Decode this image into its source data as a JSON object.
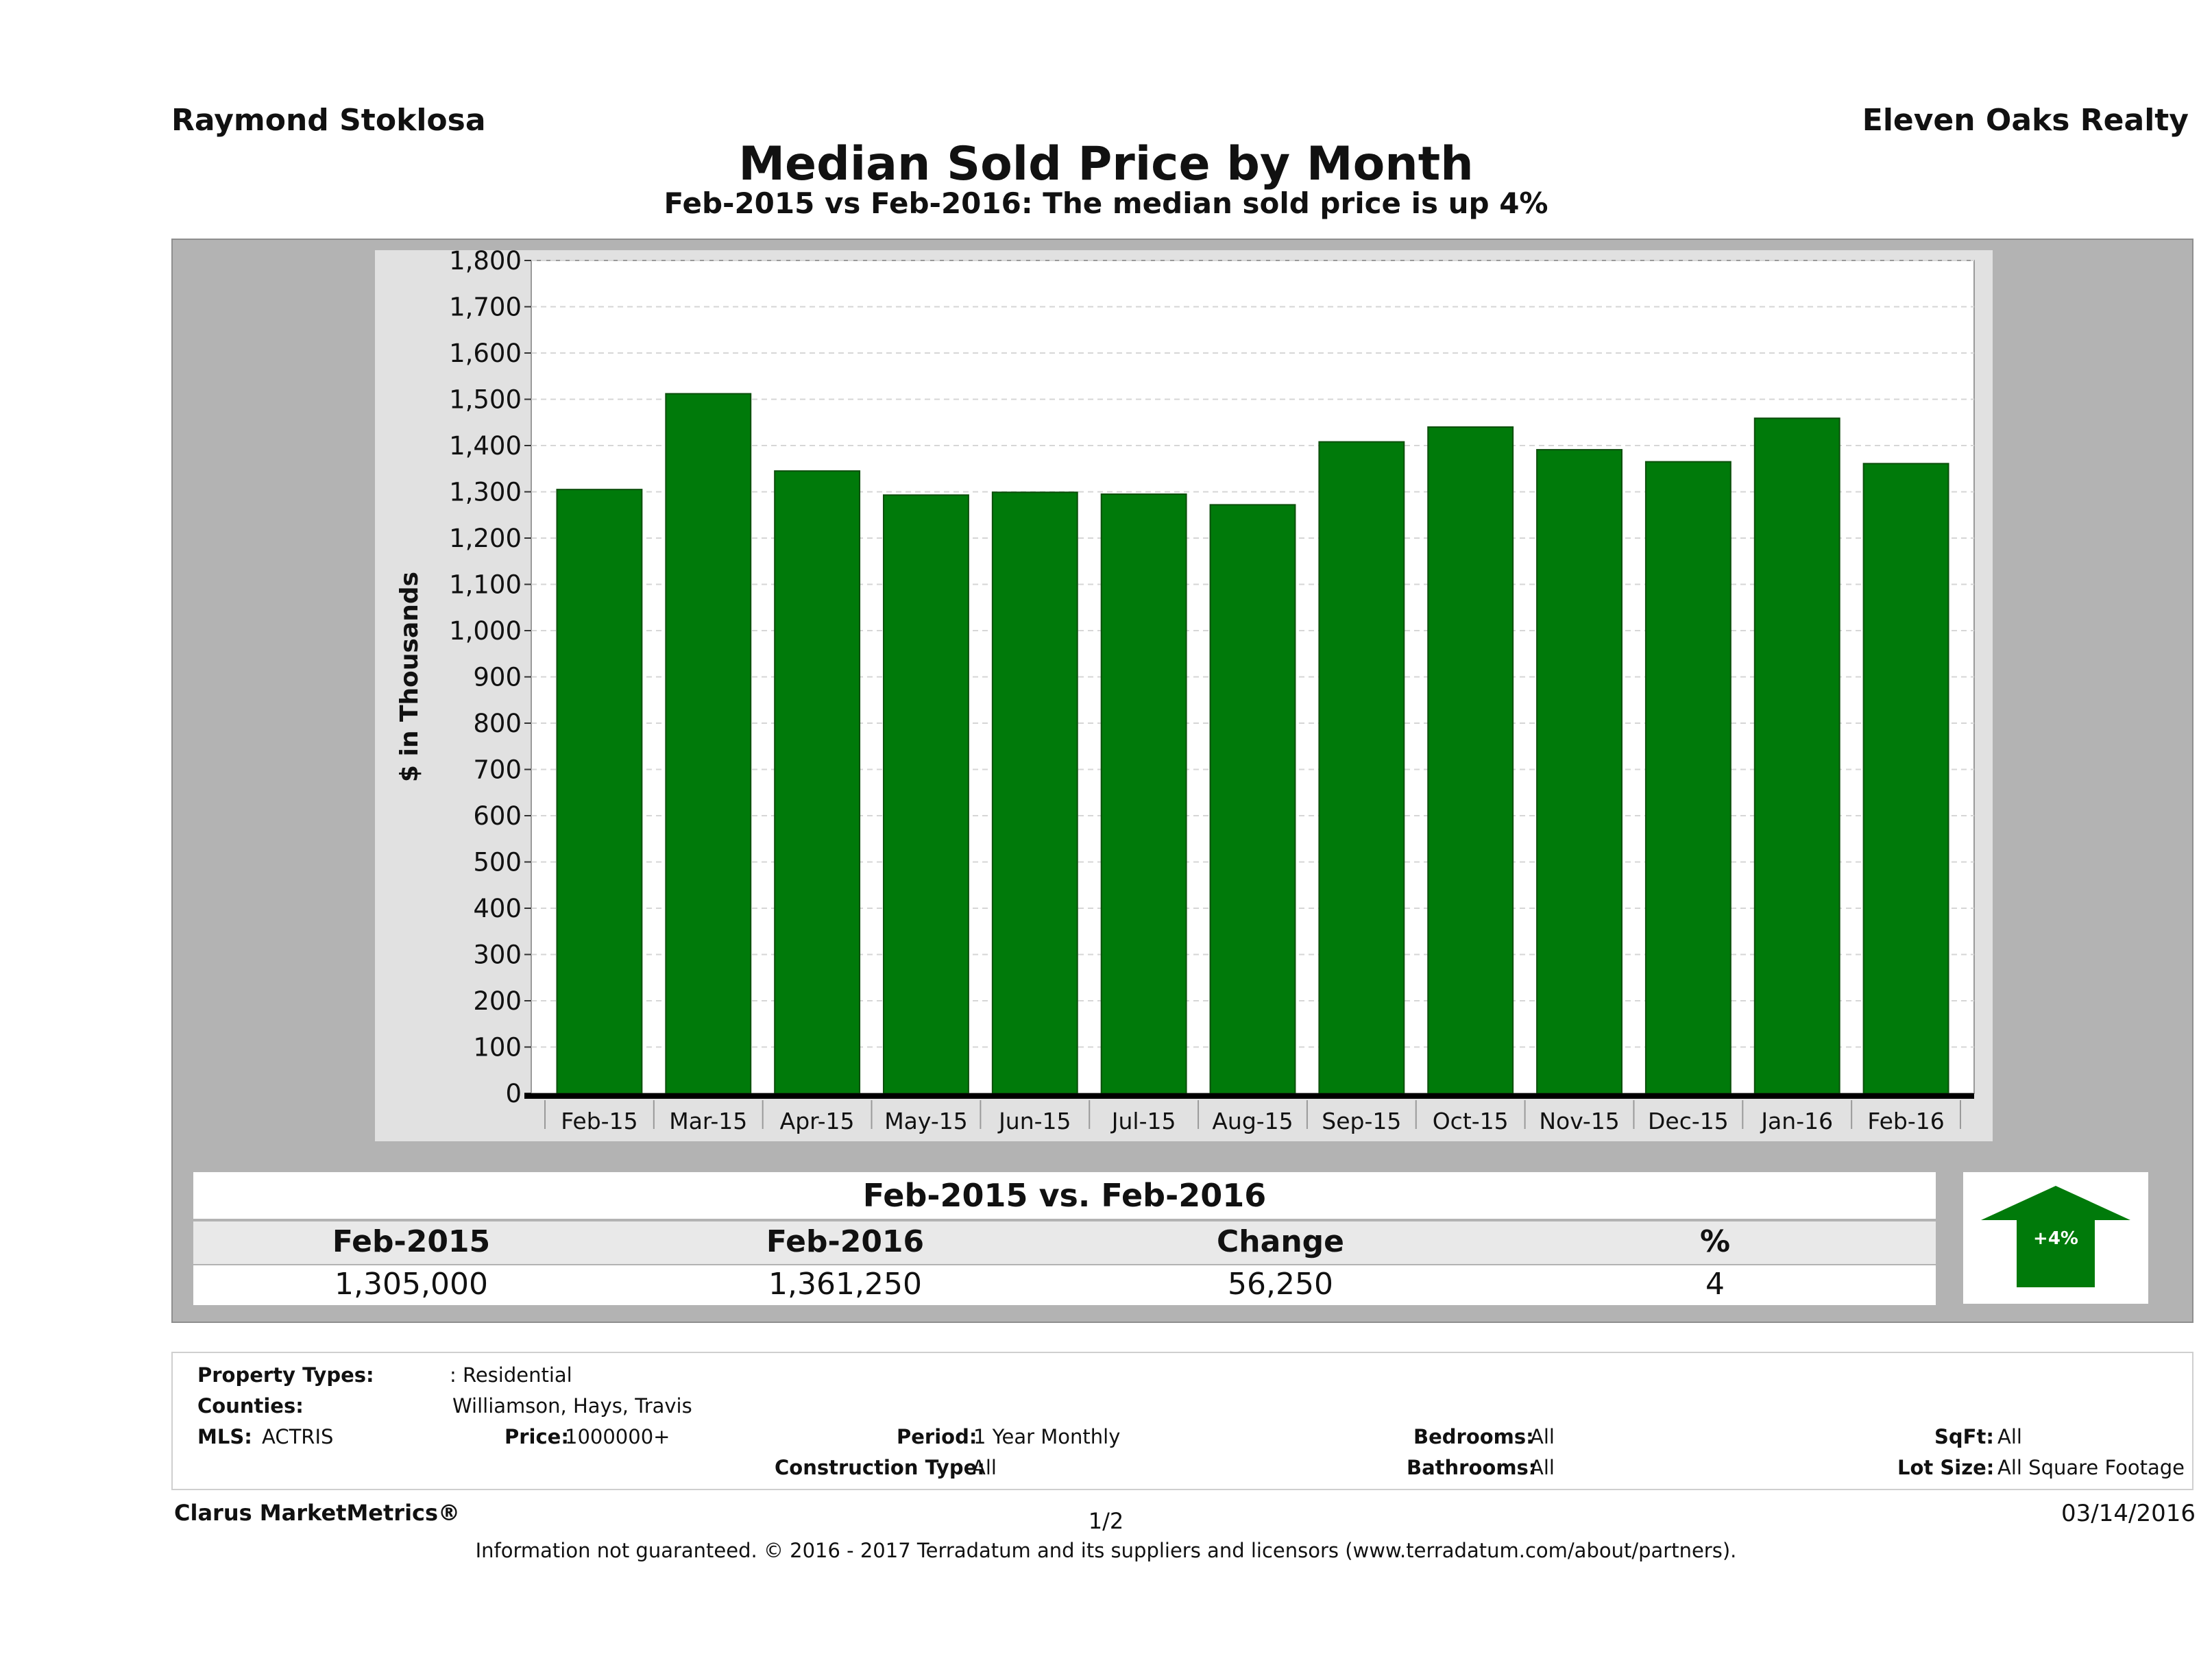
{
  "header": {
    "agent": "Raymond Stoklosa",
    "brokerage": "Eleven Oaks Realty",
    "title": "Median Sold Price by Month",
    "subtitle": "Feb-2015 vs Feb-2016: The median sold price is up 4%"
  },
  "chart_data": {
    "type": "bar",
    "categories": [
      "Feb-15",
      "Mar-15",
      "Apr-15",
      "May-15",
      "Jun-15",
      "Jul-15",
      "Aug-15",
      "Sep-15",
      "Oct-15",
      "Nov-15",
      "Dec-15",
      "Jan-16",
      "Feb-16"
    ],
    "values": [
      1305,
      1512,
      1345,
      1293,
      1299,
      1295,
      1272,
      1408,
      1440,
      1391,
      1365,
      1459,
      1361
    ],
    "title": "Median Sold Price by Month",
    "xlabel": "",
    "ylabel": "$ in Thousands",
    "ylim": [
      0,
      1800
    ],
    "yticks": [
      0,
      100,
      200,
      300,
      400,
      500,
      600,
      700,
      800,
      900,
      1000,
      1100,
      1200,
      1300,
      1400,
      1500,
      1600,
      1700,
      1800
    ],
    "ytick_labels": [
      "0",
      "100",
      "200",
      "300",
      "400",
      "500",
      "600",
      "700",
      "800",
      "900",
      "1,000",
      "1,100",
      "1,200",
      "1,300",
      "1,400",
      "1,500",
      "1,600",
      "1,700",
      "1,800"
    ],
    "grid": true,
    "bar_color": "#007a0a"
  },
  "comparison": {
    "title": "Feb-2015 vs. Feb-2016",
    "headers": [
      "Feb-2015",
      "Feb-2016",
      "Change",
      "%"
    ],
    "values": [
      "1,305,000",
      "1,361,250",
      "56,250",
      "4"
    ],
    "arrow_label": "+4%",
    "arrow_color": "#007a0a"
  },
  "filters": {
    "property_types_label": "Property Types:",
    "property_types_value": ": Residential",
    "counties_label": "Counties:",
    "counties_value": "Williamson, Hays, Travis",
    "mls_label": "MLS:",
    "mls_value": "ACTRIS",
    "price_label": "Price:",
    "price_value": "1000000+",
    "period_label": "Period:",
    "period_value": "1 Year Monthly",
    "construction_label": "Construction Type:",
    "construction_value": "All",
    "bedrooms_label": "Bedrooms:",
    "bedrooms_value": "All",
    "bathrooms_label": "Bathrooms:",
    "bathrooms_value": "All",
    "sqft_label": "SqFt:",
    "sqft_value": "All",
    "lotsize_label": "Lot Size:",
    "lotsize_value": "All Square Footage"
  },
  "footer": {
    "source": "Clarus MarketMetrics®",
    "page": "1/2",
    "date": "03/14/2016",
    "disclaimer": "Information not guaranteed. © 2016 - 2017 Terradatum and its suppliers and licensors (www.terradatum.com/about/partners)."
  }
}
